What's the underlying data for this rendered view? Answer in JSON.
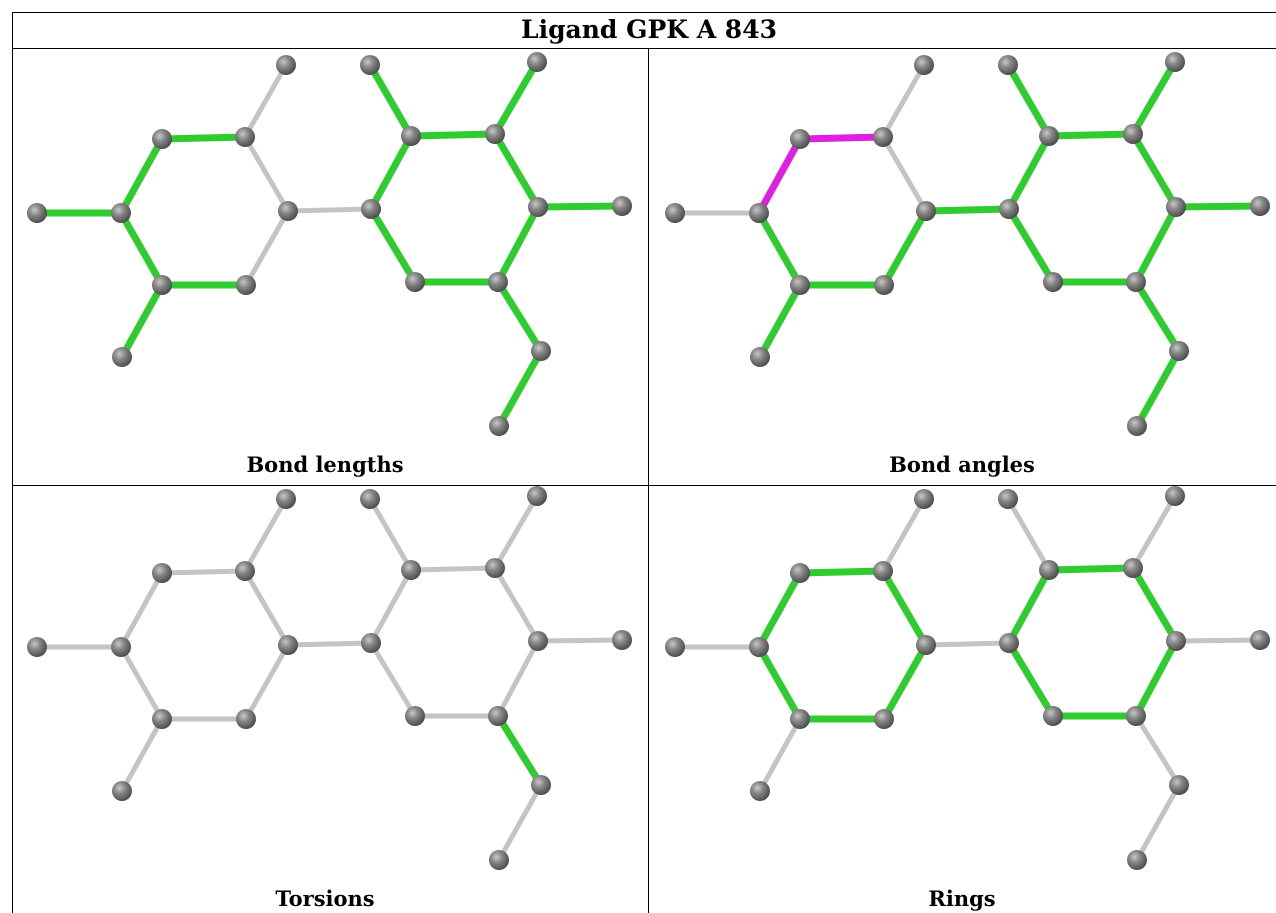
{
  "title": "Ligand GPK A 843",
  "panels": [
    {
      "label": "Bond lengths",
      "highlighted_bonds": [
        [
          1,
          0
        ],
        [
          3,
          2
        ],
        [
          3,
          4
        ],
        [
          5,
          6
        ],
        [
          6,
          7
        ],
        [
          7,
          8
        ],
        [
          8,
          9
        ],
        [
          9,
          4
        ],
        [
          10,
          11
        ],
        [
          11,
          12
        ],
        [
          12,
          13
        ],
        [
          13,
          14
        ],
        [
          14,
          9
        ],
        [
          13,
          15
        ],
        [
          12,
          16
        ],
        [
          16,
          17
        ],
        [
          11,
          18
        ]
      ],
      "magenta_bonds": []
    },
    {
      "label": "Bond angles",
      "highlighted_bonds": [
        [
          4,
          5
        ],
        [
          5,
          6
        ],
        [
          6,
          7
        ],
        [
          8,
          9
        ],
        [
          9,
          10
        ],
        [
          10,
          11
        ],
        [
          11,
          12
        ],
        [
          12,
          13
        ],
        [
          13,
          14
        ],
        [
          14,
          9
        ],
        [
          13,
          15
        ],
        [
          12,
          16
        ],
        [
          16,
          17
        ],
        [
          11,
          18
        ],
        [
          14,
          19
        ]
      ],
      "magenta_bonds": [
        [
          2,
          3
        ],
        [
          3,
          4
        ]
      ]
    },
    {
      "label": "Torsions",
      "highlighted_bonds": [
        [
          12,
          16
        ]
      ],
      "magenta_bonds": []
    },
    {
      "label": "Rings",
      "highlighted_bonds": [
        [
          2,
          3
        ],
        [
          3,
          4
        ],
        [
          4,
          5
        ],
        [
          5,
          6
        ],
        [
          6,
          7
        ],
        [
          7,
          2
        ],
        [
          9,
          10
        ],
        [
          10,
          11
        ],
        [
          11,
          12
        ],
        [
          12,
          13
        ],
        [
          13,
          14
        ],
        [
          14,
          9
        ]
      ],
      "magenta_bonds": []
    }
  ],
  "colors": {
    "green": "#2ecc2e",
    "magenta": "#e020e0",
    "gray_bond": "#c4c4c4",
    "atom": "#777777"
  }
}
